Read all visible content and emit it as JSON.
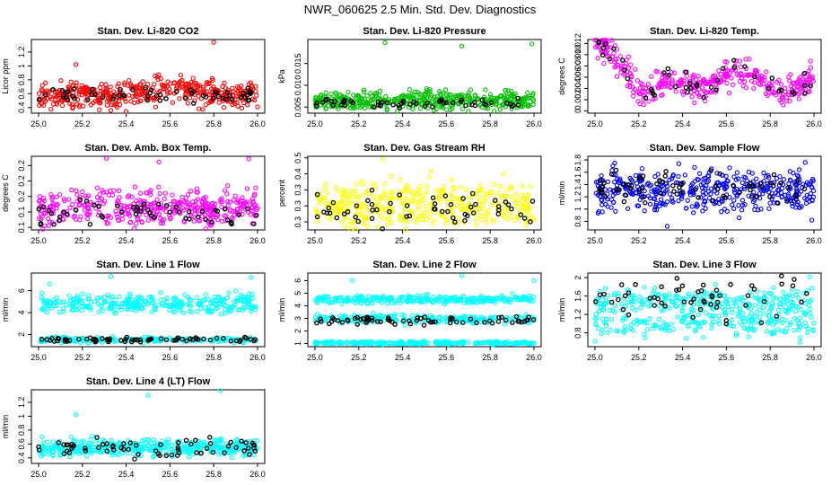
{
  "page_title": "NWR_060625  2.5 Min. Std. Dev. Diagnostics",
  "colors": {
    "black": "#000000"
  },
  "chart_data": [
    {
      "type": "scatter",
      "title": "Stan. Dev. Li-820 CO2",
      "ylabel": "Licor ppm",
      "xlim": [
        25.0,
        26.0
      ],
      "xticks": [
        25.0,
        25.2,
        25.4,
        25.6,
        25.8,
        26.0
      ],
      "ylim": [
        0.32,
        1.38
      ],
      "yticks": [
        0.4,
        0.6,
        0.8,
        1.0,
        1.2
      ],
      "color": "#ff0000",
      "series": [
        {
          "kind": "dense",
          "n": 420,
          "base": 0.58,
          "spread": 0.09,
          "hump": [
            25.45,
            25.85,
            0.2
          ],
          "outliers": [
            [
              25.17,
              1.02
            ],
            [
              25.33,
              0.36
            ],
            [
              25.8,
              1.34
            ],
            [
              26.0,
              0.41
            ]
          ]
        },
        {
          "kind": "black",
          "n": 60,
          "base": 0.57,
          "spread": 0.05
        }
      ]
    },
    {
      "type": "scatter",
      "title": "Stan. Dev. Li-820 Pressure",
      "ylabel": "kPa",
      "xlim": [
        25.0,
        26.0
      ],
      "xticks": [
        25.0,
        25.2,
        25.4,
        25.6,
        25.8,
        26.0
      ],
      "ylim": [
        0.0036,
        0.0205
      ],
      "yticks": [
        0.005,
        0.01,
        0.015
      ],
      "color": "#00c000",
      "series": [
        {
          "kind": "dense",
          "n": 420,
          "base": 0.0065,
          "spread": 0.0011,
          "outliers": [
            [
              25.32,
              0.0198
            ],
            [
              25.67,
              0.019
            ],
            [
              25.99,
              0.0195
            ]
          ]
        },
        {
          "kind": "black",
          "n": 55,
          "base": 0.0058,
          "spread": 0.0005
        }
      ]
    },
    {
      "type": "scatter",
      "title": "Stan. Dev. Li-820 Temp.",
      "ylabel": "degrees C",
      "xlim": [
        25.0,
        26.0
      ],
      "xticks": [
        25.0,
        25.2,
        25.4,
        25.6,
        25.8,
        26.0
      ],
      "ylim": [
        -0.0004,
        0.0127
      ],
      "yticks": [
        0.0,
        0.002,
        0.004,
        0.006,
        0.008,
        0.01,
        0.012
      ],
      "color": "#ff00ff",
      "series": [
        {
          "kind": "dense",
          "n": 380,
          "curve": "temp",
          "spread": 0.0012,
          "outliers": []
        },
        {
          "kind": "black",
          "n": 45,
          "curve": "temp",
          "spread": 0.0014
        }
      ]
    },
    {
      "type": "scatter",
      "title": "Stan. Dev. Amb. Box Temp.",
      "ylabel": "degrees C",
      "xlim": [
        25.0,
        26.0
      ],
      "xticks": [
        25.0,
        25.2,
        25.4,
        25.6,
        25.8,
        26.0
      ],
      "ylim": [
        0.095,
        0.238
      ],
      "yticks": [
        0.1,
        0.13,
        0.16,
        0.19,
        0.22
      ],
      "color": "#ff00ff",
      "series": [
        {
          "kind": "dense",
          "n": 400,
          "base": 0.138,
          "spread": 0.017,
          "outliers": [
            [
              25.31,
              0.234
            ],
            [
              25.96,
              0.233
            ],
            [
              25.55,
              0.227
            ]
          ]
        },
        {
          "kind": "black",
          "n": 55,
          "base": 0.128,
          "spread": 0.012
        }
      ]
    },
    {
      "type": "scatter",
      "title": "Stan. Dev. Gas Stream RH",
      "ylabel": "percent",
      "xlim": [
        25.0,
        26.0
      ],
      "xticks": [
        25.0,
        25.2,
        25.4,
        25.6,
        25.8,
        26.0
      ],
      "ylim": [
        0.225,
        0.455
      ],
      "yticks": [
        0.25,
        0.3,
        0.35,
        0.4,
        0.45
      ],
      "color": "#ffff00",
      "series": [
        {
          "kind": "dense",
          "n": 400,
          "base": 0.305,
          "spread": 0.035,
          "outliers": [
            [
              25.31,
              0.445
            ],
            [
              25.53,
              0.41
            ]
          ]
        },
        {
          "kind": "black",
          "n": 55,
          "base": 0.29,
          "spread": 0.025
        }
      ]
    },
    {
      "type": "scatter",
      "title": "Stan. Dev. Sample Flow",
      "ylabel": "ml/min",
      "xlim": [
        25.0,
        26.0
      ],
      "xticks": [
        25.0,
        25.2,
        25.4,
        25.6,
        25.8,
        26.0
      ],
      "ylim": [
        0.66,
        1.86
      ],
      "yticks": [
        0.8,
        1.0,
        1.2,
        1.4,
        1.6,
        1.8
      ],
      "color": "#0000ff",
      "series": [
        {
          "kind": "dense",
          "n": 420,
          "base": 1.3,
          "spread": 0.16,
          "outliers": [
            [
              25.09,
              1.75
            ],
            [
              25.33,
              0.72
            ],
            [
              25.99,
              0.82
            ]
          ]
        },
        {
          "kind": "black",
          "n": 70,
          "base": 1.33,
          "spread": 0.11
        }
      ]
    },
    {
      "type": "scatter",
      "title": "Stan. Dev. Line 1 Flow",
      "ylabel": "ml/min",
      "xlim": [
        25.0,
        26.0
      ],
      "xticks": [
        25.0,
        25.2,
        25.4,
        25.6,
        25.8,
        26.0
      ],
      "ylim": [
        0.9,
        7.6
      ],
      "yticks": [
        2,
        4,
        6
      ],
      "color": "#00ffff",
      "series": [
        {
          "kind": "dense",
          "n": 320,
          "base": 4.85,
          "spread": 0.45,
          "outliers": [
            [
              25.05,
              6.6
            ],
            [
              25.33,
              7.3
            ],
            [
              25.97,
              7.2
            ]
          ]
        },
        {
          "kind": "dense",
          "n": 220,
          "base": 1.55,
          "spread": 0.12,
          "outliers": []
        },
        {
          "kind": "black",
          "n": 70,
          "base": 1.55,
          "spread": 0.1
        }
      ]
    },
    {
      "type": "scatter",
      "title": "Stan. Dev. Line 2 Flow",
      "ylabel": "ml/min",
      "xlim": [
        25.0,
        26.0
      ],
      "xticks": [
        25.0,
        25.2,
        25.4,
        25.6,
        25.8,
        26.0
      ],
      "ylim": [
        0.75,
        6.6
      ],
      "yticks": [
        1,
        2,
        3,
        4,
        5,
        6
      ],
      "color": "#00ffff",
      "series": [
        {
          "kind": "dense",
          "n": 280,
          "base": 4.5,
          "spread": 0.16,
          "outliers": [
            [
              25.17,
              6.0
            ],
            [
              25.67,
              6.4
            ],
            [
              26.0,
              6.0
            ]
          ]
        },
        {
          "kind": "dense",
          "n": 240,
          "base": 2.95,
          "spread": 0.16,
          "outliers": []
        },
        {
          "kind": "dense",
          "n": 260,
          "base": 1.05,
          "spread": 0.06,
          "outliers": []
        },
        {
          "kind": "black",
          "n": 70,
          "base": 2.85,
          "spread": 0.17
        }
      ]
    },
    {
      "type": "scatter",
      "title": "Stan. Dev. Line 3 Flow",
      "ylabel": "ml/min",
      "xlim": [
        25.0,
        26.0
      ],
      "xticks": [
        25.0,
        25.2,
        25.4,
        25.6,
        25.8,
        26.0
      ],
      "ylim": [
        0.5,
        2.1
      ],
      "yticks": [
        0.8,
        1.2,
        1.6,
        2.0
      ],
      "color": "#00ffff",
      "series": [
        {
          "kind": "dense",
          "n": 240,
          "base": 1.5,
          "spread": 0.14,
          "outliers": []
        },
        {
          "kind": "dense",
          "n": 200,
          "base": 1.02,
          "spread": 0.14,
          "outliers": [
            [
              25.0,
              0.62
            ],
            [
              25.98,
              2.02
            ]
          ]
        },
        {
          "kind": "black",
          "n": 55,
          "base": 1.55,
          "spread": 0.22
        }
      ]
    },
    {
      "type": "scatter",
      "title": "Stan. Dev. Line 4 (LT) Flow",
      "ylabel": "ml/min",
      "xlim": [
        25.0,
        26.0
      ],
      "xticks": [
        25.0,
        25.2,
        25.4,
        25.6,
        25.8,
        26.0
      ],
      "ylim": [
        0.32,
        1.38
      ],
      "yticks": [
        0.4,
        0.6,
        0.8,
        1.0,
        1.2
      ],
      "color": "#00ffff",
      "series": [
        {
          "kind": "dense",
          "n": 420,
          "base": 0.55,
          "spread": 0.06,
          "outliers": [
            [
              25.17,
              1.02
            ],
            [
              25.83,
              1.37
            ],
            [
              25.5,
              1.3
            ]
          ]
        },
        {
          "kind": "black",
          "n": 65,
          "base": 0.55,
          "spread": 0.07
        }
      ]
    }
  ]
}
